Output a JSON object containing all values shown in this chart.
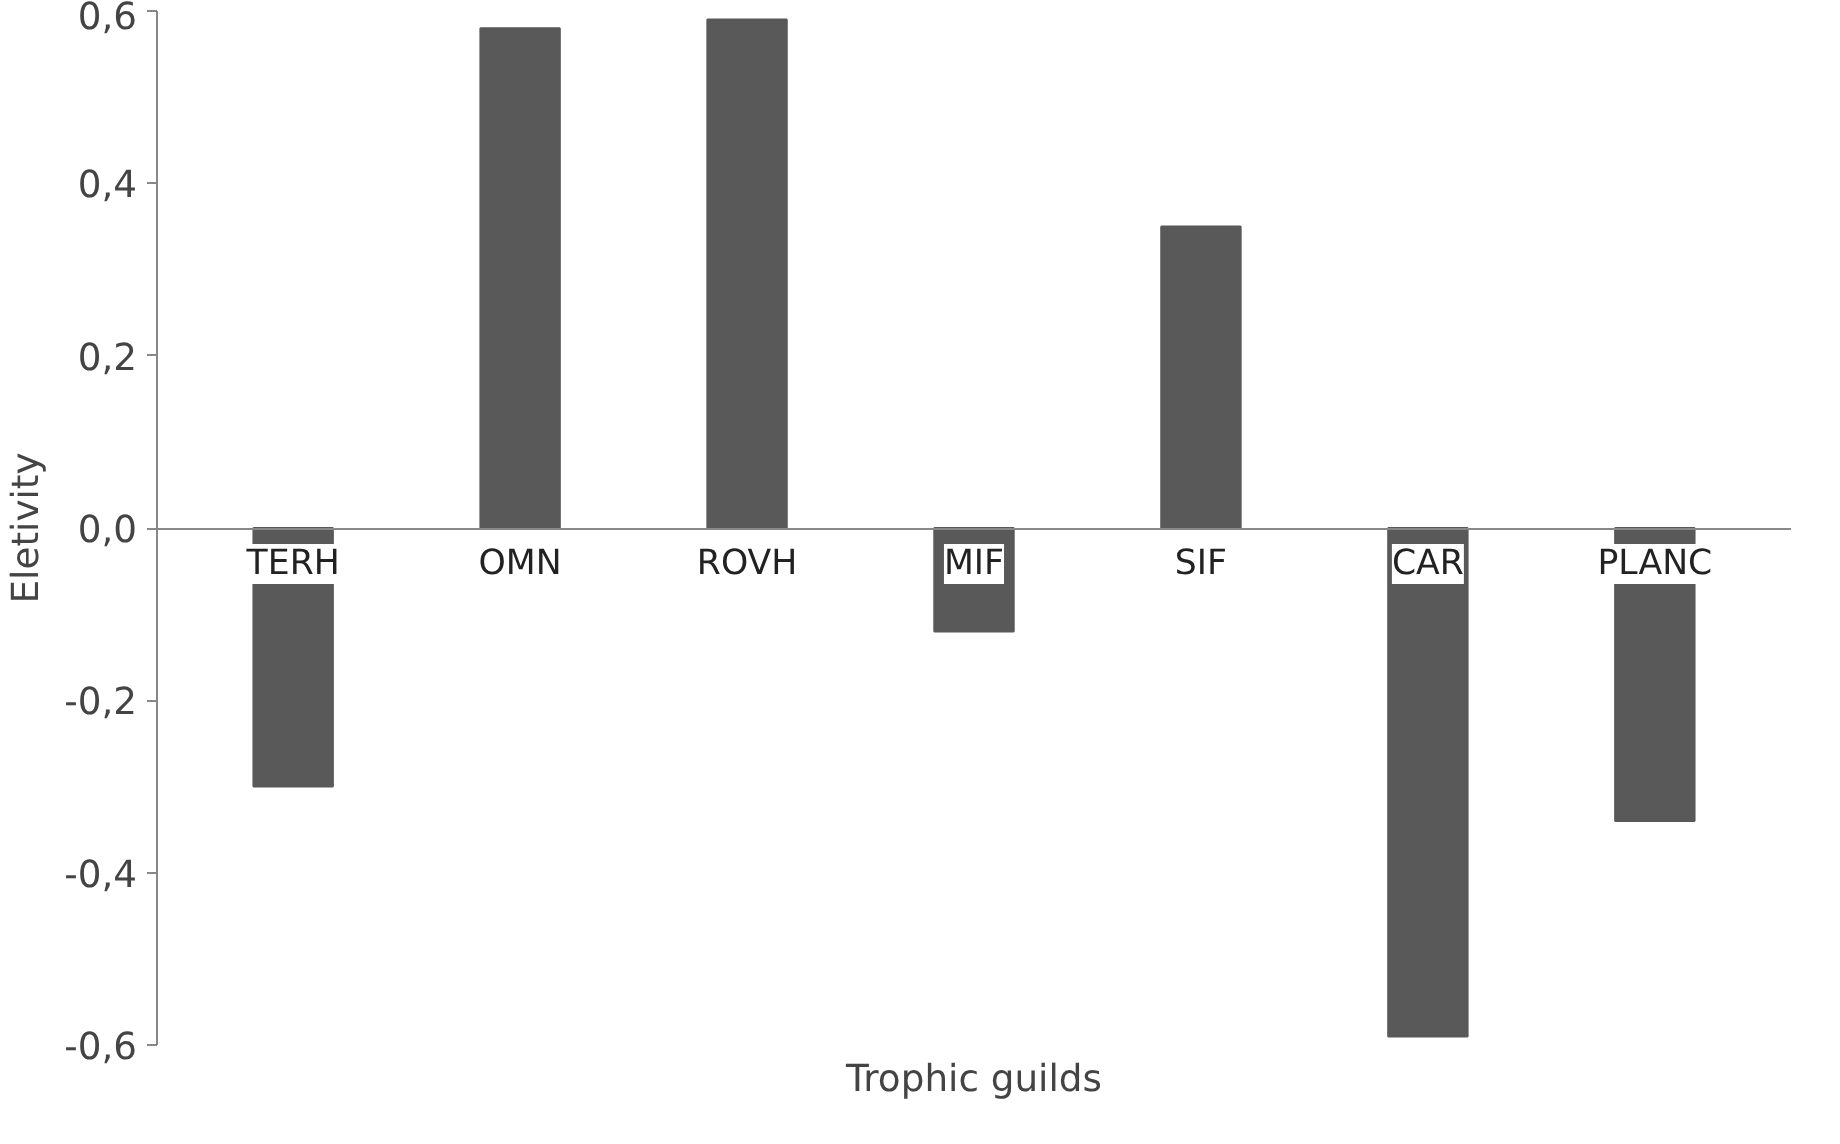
{
  "chart_data": {
    "type": "bar",
    "xlabel": "Trophic guilds",
    "ylabel": "Eletivity",
    "categories": [
      "TERH",
      "OMN",
      "ROVH",
      "MIF",
      "SIF",
      "CAR",
      "PLANC"
    ],
    "values": [
      -0.3,
      0.58,
      0.59,
      -0.12,
      0.35,
      -0.59,
      -0.34
    ],
    "color": "#595959",
    "ylim": [
      -0.6,
      0.6
    ],
    "yticks": [
      {
        "value": -0.6,
        "label": "-0,6"
      },
      {
        "value": -0.4,
        "label": "-0,4"
      },
      {
        "value": -0.2,
        "label": "-0,2"
      },
      {
        "value": 0,
        "label": "0,0"
      },
      {
        "value": 0.2,
        "label": "0,2"
      },
      {
        "value": 0.4,
        "label": "0,4"
      },
      {
        "value": 0.6,
        "label": "0,6"
      }
    ],
    "grid": false
  }
}
